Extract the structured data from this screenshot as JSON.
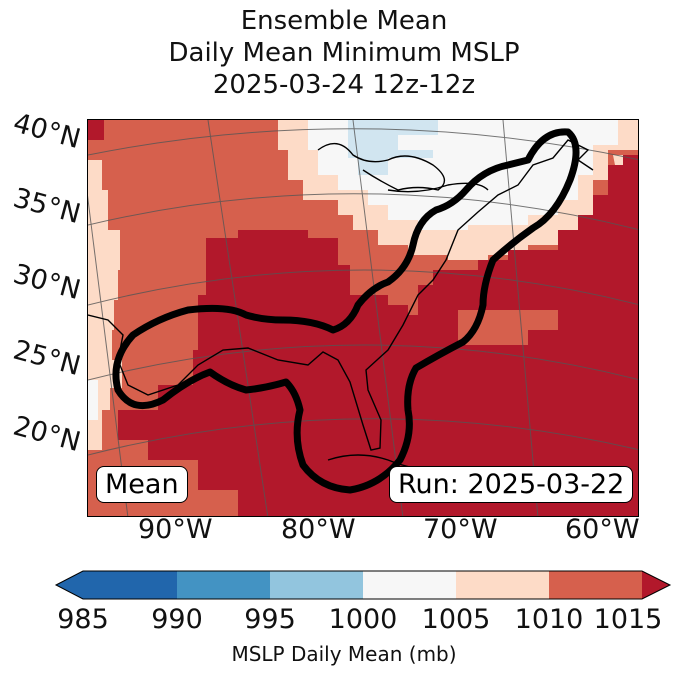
{
  "title": {
    "line1": "Ensemble Mean",
    "line2": "Daily Mean Minimum MSLP",
    "line3": "2025-03-24 12z-12z"
  },
  "map": {
    "latitude_labels": [
      "40°N",
      "35°N",
      "30°N",
      "25°N",
      "20°N"
    ],
    "longitude_labels": [
      "90°W",
      "80°W",
      "70°W",
      "60°W"
    ],
    "mean_label": "Mean",
    "run_label": "Run: 2025-03-22",
    "outline_color": "#000000"
  },
  "colorbar": {
    "title": "MSLP Daily Mean (mb)",
    "ticks": [
      "985",
      "990",
      "995",
      "1000",
      "1005",
      "1010",
      "1015"
    ],
    "colors": [
      "#2166ac",
      "#4393c3",
      "#92c5de",
      "#d1e5f0",
      "#f7f7f7",
      "#fddbc7",
      "#d6604d",
      "#b2182b"
    ],
    "under_color": "#2166ac",
    "over_color": "#b2182b"
  }
}
